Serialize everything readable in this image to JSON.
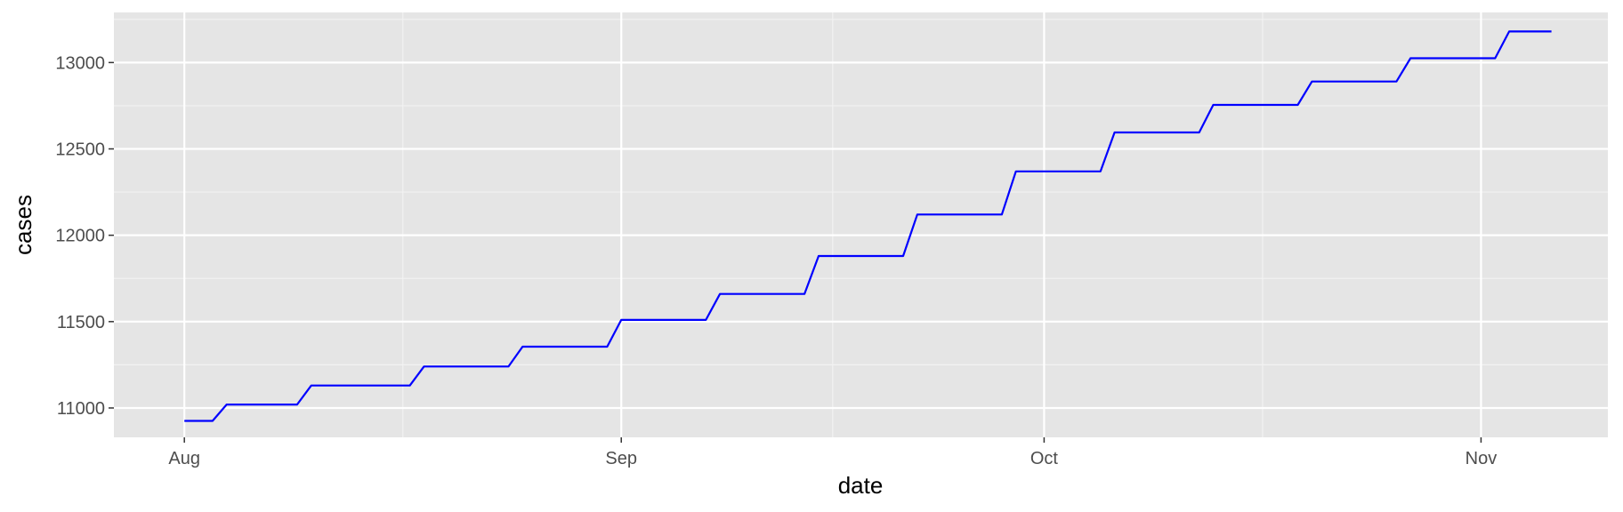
{
  "chart_data": {
    "type": "line",
    "title": "",
    "xlabel": "date",
    "ylabel": "cases",
    "x_ticks": [
      {
        "label": "Aug",
        "date": "2020-08-01"
      },
      {
        "label": "Sep",
        "date": "2020-09-01"
      },
      {
        "label": "Oct",
        "date": "2020-10-01"
      },
      {
        "label": "Nov",
        "date": "2020-11-01"
      }
    ],
    "y_ticks": [
      11000,
      11500,
      12000,
      12500,
      13000
    ],
    "xlim": [
      "2020-07-27",
      "2020-11-10"
    ],
    "ylim": [
      10830,
      13290
    ],
    "grid": true,
    "legend": "none",
    "series": [
      {
        "color": "#0000ff",
        "x": [
          "2020-08-01",
          "2020-08-03",
          "2020-08-04",
          "2020-08-09",
          "2020-08-10",
          "2020-08-17",
          "2020-08-18",
          "2020-08-24",
          "2020-08-25",
          "2020-08-31",
          "2020-09-01",
          "2020-09-07",
          "2020-09-08",
          "2020-09-14",
          "2020-09-15",
          "2020-09-21",
          "2020-09-22",
          "2020-09-28",
          "2020-09-29",
          "2020-10-05",
          "2020-10-06",
          "2020-10-12",
          "2020-10-13",
          "2020-10-19",
          "2020-10-20",
          "2020-10-26",
          "2020-10-27",
          "2020-11-02",
          "2020-11-03",
          "2020-11-06"
        ],
        "y": [
          10925,
          10925,
          11020,
          11020,
          11130,
          11130,
          11240,
          11240,
          11355,
          11355,
          11510,
          11510,
          11660,
          11660,
          11880,
          11880,
          12120,
          12120,
          12370,
          12370,
          12595,
          12595,
          12755,
          12755,
          12890,
          12890,
          13025,
          13025,
          13180,
          13180
        ]
      }
    ]
  }
}
